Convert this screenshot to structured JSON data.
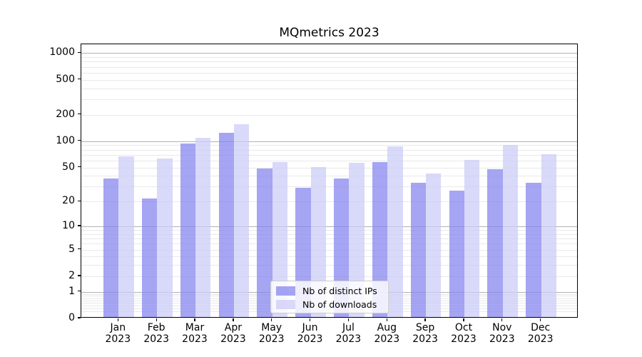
{
  "chart_data": {
    "type": "bar",
    "title": "MQmetrics 2023",
    "categories": [
      "Jan",
      "Feb",
      "Mar",
      "Apr",
      "May",
      "Jun",
      "Jul",
      "Aug",
      "Sep",
      "Oct",
      "Nov",
      "Dec"
    ],
    "category_year": "2023",
    "series": [
      {
        "name": "Nb of distinct IPs",
        "color": "#8282ee",
        "alpha": 0.72,
        "values": [
          36,
          21,
          90,
          120,
          47,
          28,
          36,
          55,
          32,
          26,
          46,
          32
        ]
      },
      {
        "name": "Nb of downloads",
        "color": "#cbcbf7",
        "alpha": 0.72,
        "values": [
          64,
          61,
          106,
          150,
          56,
          49,
          54,
          84,
          41,
          59,
          87,
          68
        ]
      }
    ],
    "xlabel": "",
    "ylabel": "",
    "y_scale": "symlog-like (position proportional to log10(1+value))",
    "y_tick_labels": [
      "1000",
      "500",
      "200",
      "100",
      "50",
      "20",
      "10",
      "5",
      "2",
      "1",
      "0"
    ],
    "y_tick_values": [
      1000,
      500,
      200,
      100,
      50,
      20,
      10,
      5,
      2,
      1,
      0
    ],
    "ylim": [
      0,
      1260
    ],
    "grid": "major lines at 1,10,100,1000; faint minor log lines",
    "legend_position": "bottom-center inside plot",
    "background_color": "#ffffff",
    "axis_color": "#000000"
  }
}
